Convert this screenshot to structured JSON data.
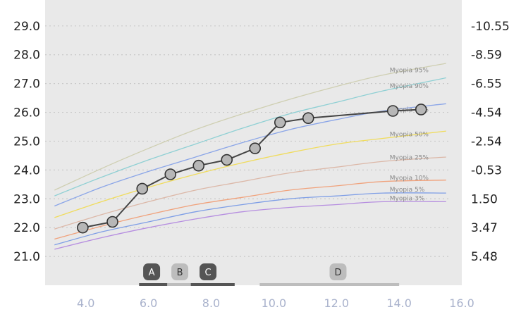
{
  "chart_data": {
    "type": "line",
    "title": "",
    "xlabel": "",
    "ylabel": "",
    "xlim": [
      2.7,
      16.0
    ],
    "ylim": [
      20.0,
      29.9
    ],
    "grid": true,
    "x_ticks": [
      "4.0",
      "6.0",
      "8.0",
      "10.0",
      "12.0",
      "14.0",
      "16.0"
    ],
    "x_tick_values": [
      4,
      6,
      8,
      10,
      12,
      14,
      16
    ],
    "y_ticks_left": [
      "29.0",
      "28.0",
      "27.0",
      "26.0",
      "25.0",
      "24.0",
      "23.0",
      "22.0",
      "21.0"
    ],
    "y_tick_values": [
      29,
      28,
      27,
      26,
      25,
      24,
      23,
      22,
      21
    ],
    "y_ticks_right": [
      "-10.55",
      "-8.59",
      "-6.55",
      "-4.54",
      "-2.54",
      "-0.53",
      "1.50",
      "3.47",
      "5.48"
    ],
    "reference_curves": [
      {
        "name": "Myopia 95%",
        "color": "#cfcfb2",
        "x": [
          3.0,
          4.5,
          6.0,
          7.5,
          9.0,
          10.5,
          12.0,
          13.5,
          15.5
        ],
        "y": [
          23.3,
          24.05,
          24.75,
          25.4,
          25.95,
          26.45,
          26.9,
          27.3,
          27.7
        ]
      },
      {
        "name": "Myopia 90%",
        "color": "#8fd0d4",
        "x": [
          3.0,
          4.5,
          6.0,
          7.5,
          9.0,
          10.5,
          12.0,
          13.5,
          15.5
        ],
        "y": [
          23.1,
          23.75,
          24.35,
          24.9,
          25.45,
          25.95,
          26.35,
          26.75,
          27.2
        ]
      },
      {
        "name": "Myopia 75%",
        "color": "#8aa5e8",
        "x": [
          3.0,
          4.5,
          6.0,
          7.5,
          9.0,
          10.5,
          12.0,
          13.5,
          15.5
        ],
        "y": [
          22.75,
          23.4,
          23.95,
          24.45,
          24.95,
          25.4,
          25.75,
          26.05,
          26.3
        ]
      },
      {
        "name": "Myopia 50%",
        "color": "#f0dc5c",
        "x": [
          3.0,
          4.5,
          6.0,
          7.5,
          9.0,
          10.5,
          12.0,
          13.5,
          15.5
        ],
        "y": [
          22.35,
          22.9,
          23.4,
          23.85,
          24.25,
          24.6,
          24.9,
          25.1,
          25.35
        ]
      },
      {
        "name": "Myopia 25%",
        "color": "#dcb8a8",
        "x": [
          3.0,
          4.5,
          6.0,
          7.5,
          9.0,
          10.5,
          12.0,
          13.5,
          15.5
        ],
        "y": [
          21.95,
          22.45,
          22.9,
          23.3,
          23.6,
          23.9,
          24.1,
          24.3,
          24.45
        ]
      },
      {
        "name": "Myopia 10%",
        "color": "#f0a27c",
        "x": [
          3.0,
          4.5,
          6.0,
          7.5,
          9.0,
          10.5,
          12.0,
          13.5,
          15.5
        ],
        "y": [
          21.6,
          22.05,
          22.45,
          22.8,
          23.05,
          23.3,
          23.45,
          23.6,
          23.65
        ]
      },
      {
        "name": "Myopia 5%",
        "color": "#7e9ee6",
        "x": [
          3.0,
          4.5,
          6.0,
          7.5,
          9.0,
          10.5,
          12.0,
          13.5,
          15.5
        ],
        "y": [
          21.4,
          21.85,
          22.2,
          22.55,
          22.8,
          23.0,
          23.1,
          23.2,
          23.2
        ]
      },
      {
        "name": "Myopia 3%",
        "color": "#b68ee0",
        "x": [
          3.0,
          4.5,
          6.0,
          7.5,
          9.0,
          10.5,
          12.0,
          13.5,
          15.5
        ],
        "y": [
          21.25,
          21.65,
          22.0,
          22.3,
          22.55,
          22.7,
          22.8,
          22.9,
          22.9
        ]
      }
    ],
    "series": [
      {
        "x": [
          3.9,
          4.85,
          5.8,
          6.7,
          7.6,
          8.5,
          9.4,
          10.2,
          11.1,
          13.8,
          14.7
        ],
        "y": [
          22.0,
          22.2,
          23.35,
          23.85,
          24.15,
          24.35,
          24.75,
          25.65,
          25.8,
          26.05,
          26.1
        ]
      }
    ],
    "phases": [
      {
        "label": "A",
        "x": 6.1,
        "bar_from": 5.7,
        "bar_to": 6.6,
        "badge_color": "#555555",
        "bar_color": "#555555",
        "text_color": "#ffffff"
      },
      {
        "label": "B",
        "x": 7.0,
        "bar_from": 6.6,
        "bar_to": 7.35,
        "badge_color": "#bdbdbd",
        "bar_color": "#bdbdbd",
        "text_color": "#333333"
      },
      {
        "label": "C",
        "x": 7.9,
        "bar_from": 7.35,
        "bar_to": 8.75,
        "badge_color": "#555555",
        "bar_color": "#555555",
        "text_color": "#ffffff"
      },
      {
        "label": "D",
        "x": 12.05,
        "bar_from": 9.55,
        "bar_to": 14.0,
        "badge_color": "#bdbdbd",
        "bar_color": "#bdbdbd",
        "text_color": "#333333"
      }
    ],
    "colors": {
      "plot_background": "#e9e9e9",
      "grid": "#c9c9c9",
      "patient_line": "#444444",
      "patient_marker": "#b7b7b7"
    }
  }
}
